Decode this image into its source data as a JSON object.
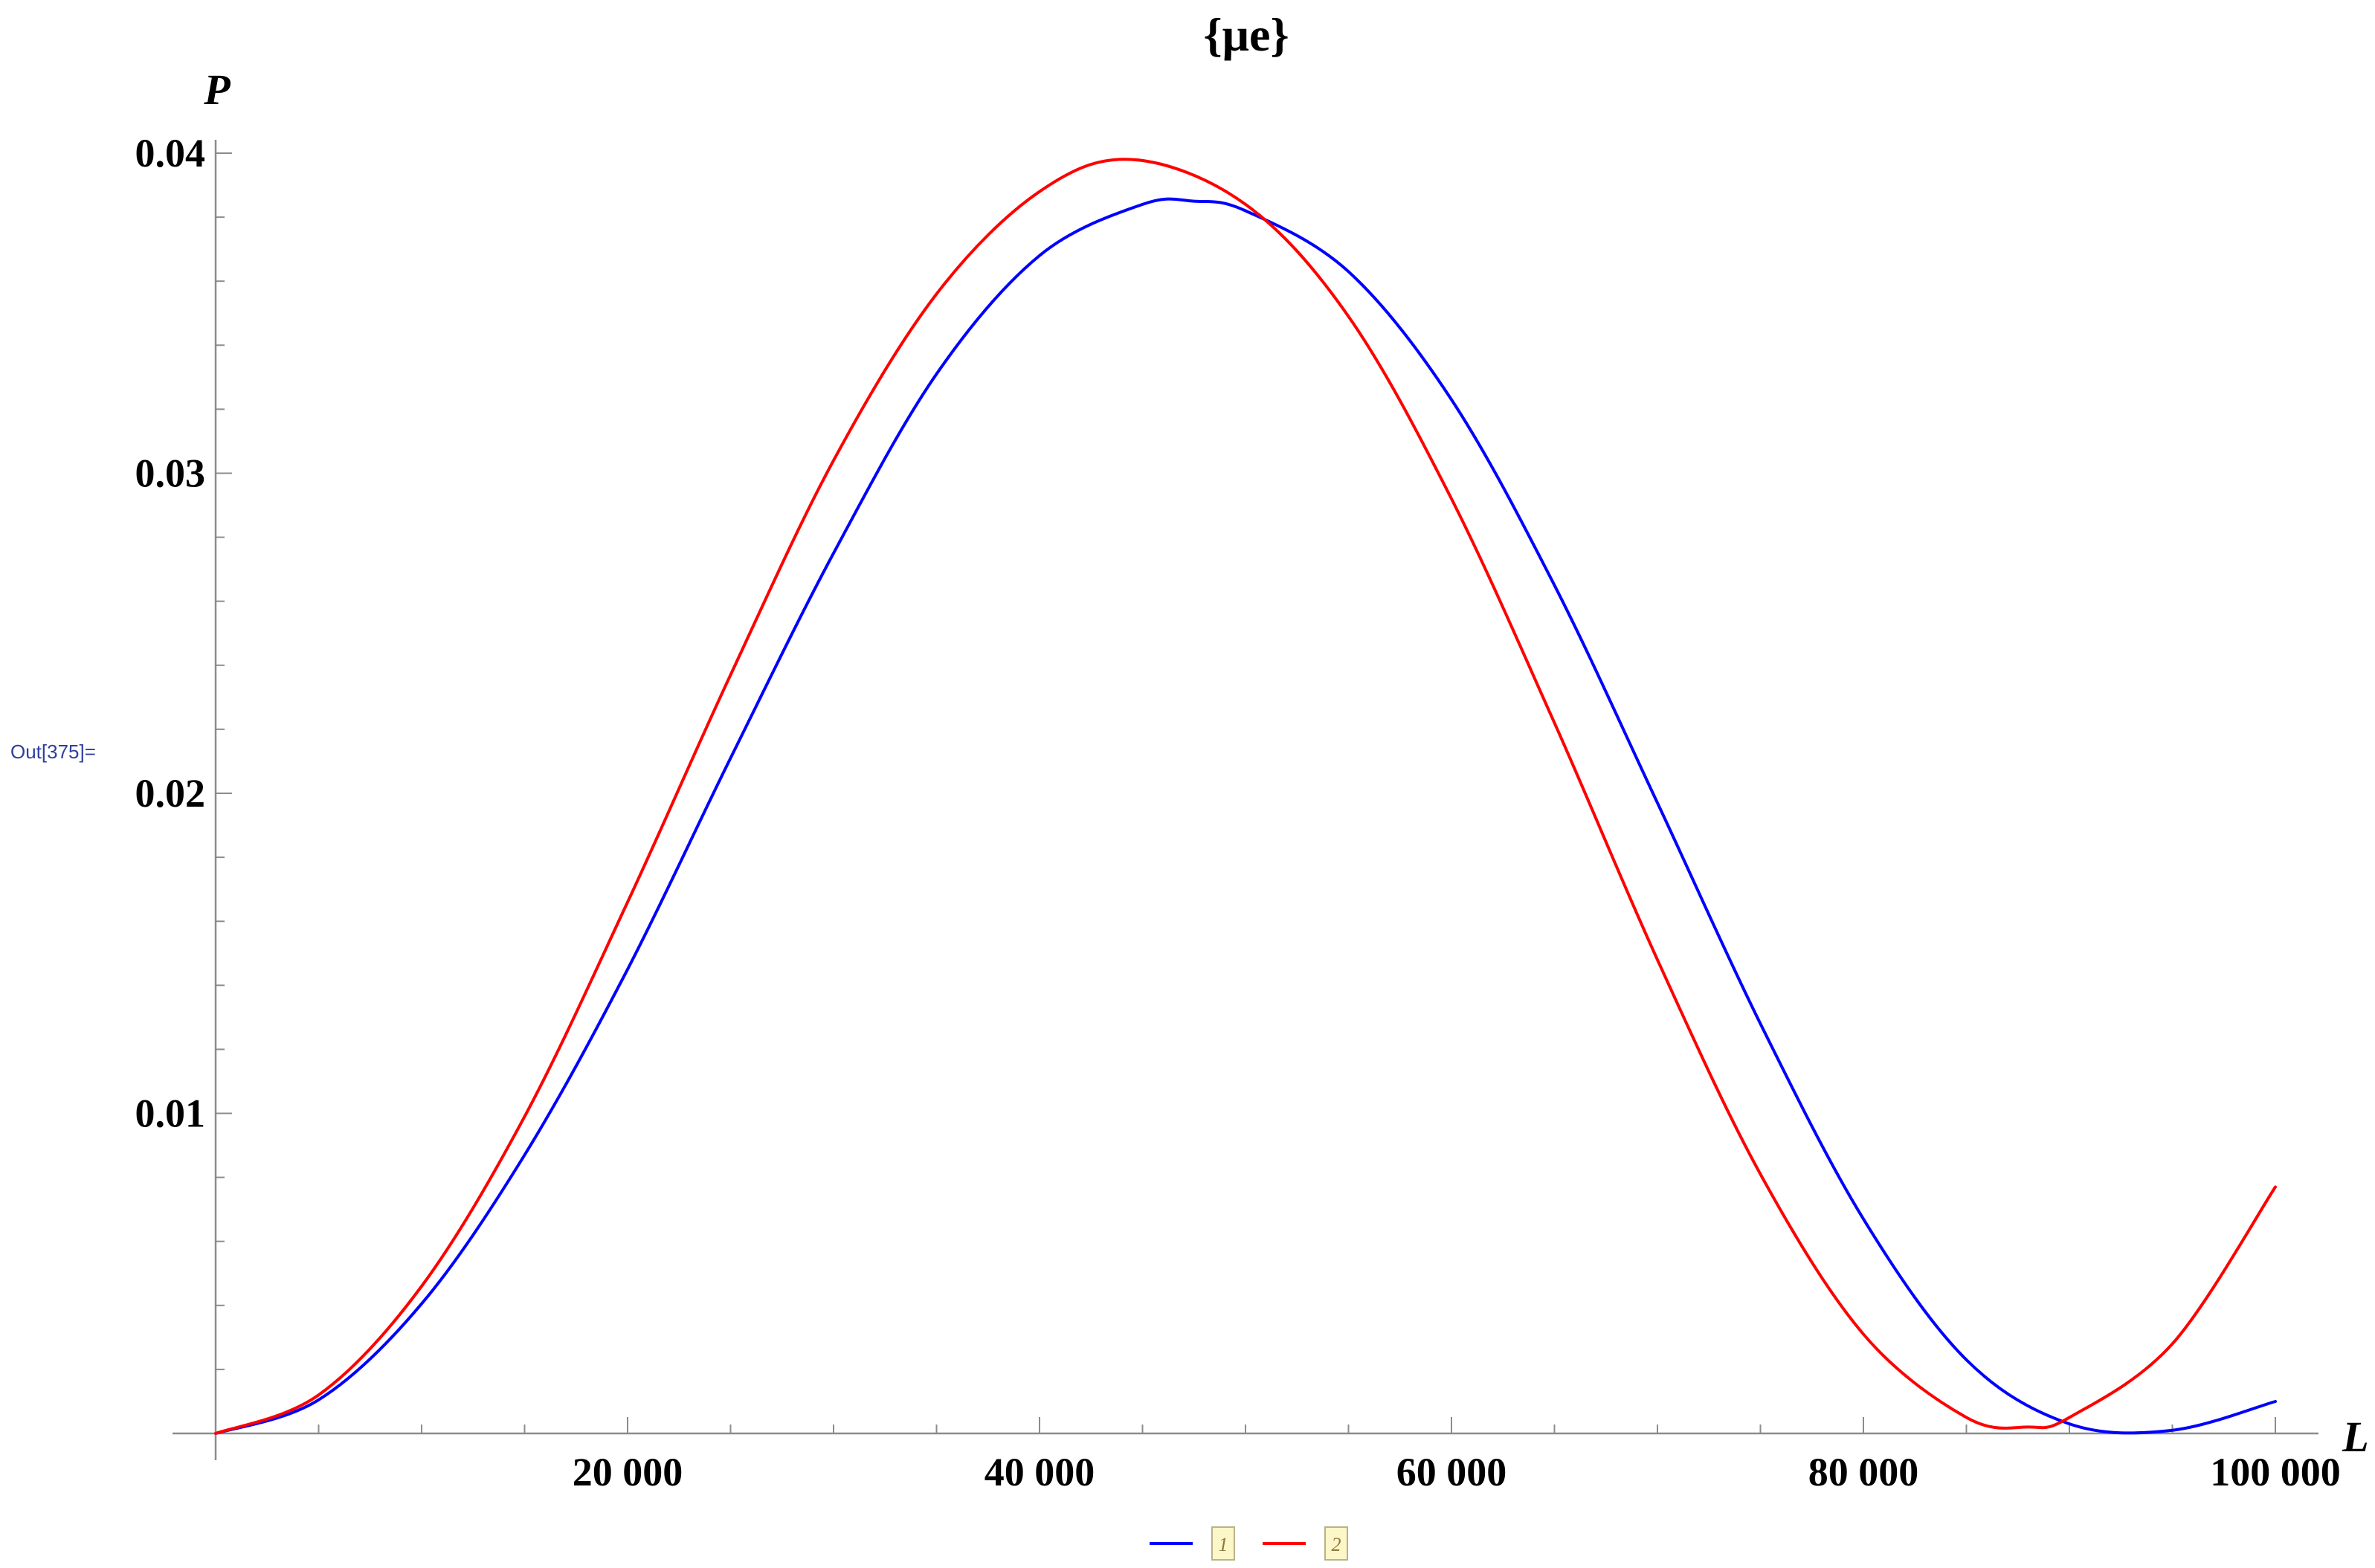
{
  "output_label": "Out[375]=",
  "chart_data": {
    "type": "line",
    "title": "{μe}",
    "xlabel": "L",
    "ylabel": "P",
    "xlim": [
      0,
      100000
    ],
    "ylim": [
      0,
      0.04
    ],
    "x_ticks": [
      20000,
      40000,
      60000,
      80000,
      100000
    ],
    "x_tick_labels": [
      "20 000",
      "40 000",
      "60 000",
      "80 000",
      "100 000"
    ],
    "y_ticks": [
      0.01,
      0.02,
      0.03,
      0.04
    ],
    "y_tick_labels": [
      "0.01",
      "0.02",
      "0.03",
      "0.04"
    ],
    "grid": false,
    "legend_position": "bottom",
    "series": [
      {
        "name": "1",
        "color": "#0000ff",
        "x": [
          0,
          5000,
          10000,
          15000,
          20000,
          25000,
          30000,
          35000,
          40000,
          45000,
          47500,
          50000,
          55000,
          60000,
          65000,
          70000,
          75000,
          80000,
          85000,
          90000,
          95000,
          100000
        ],
        "y": [
          0,
          0.00105,
          0.00405,
          0.0087,
          0.0145,
          0.0211,
          0.0275,
          0.0331,
          0.0368,
          0.0384,
          0.0385,
          0.0382,
          0.0363,
          0.0323,
          0.0265,
          0.0197,
          0.0128,
          0.0067,
          0.0023,
          0.0003,
          0.0001,
          0.001
        ]
      },
      {
        "name": "2",
        "color": "#ff0000",
        "x": [
          0,
          5000,
          10000,
          15000,
          20000,
          25000,
          30000,
          35000,
          40000,
          44500,
          50000,
          55000,
          60000,
          65000,
          70000,
          75000,
          80000,
          85000,
          88000,
          90000,
          95000,
          100000
        ],
        "y": [
          0,
          0.0012,
          0.0046,
          0.0099,
          0.0166,
          0.0237,
          0.0304,
          0.0356,
          0.0388,
          0.0398,
          0.0384,
          0.0349,
          0.0292,
          0.0222,
          0.0148,
          0.0081,
          0.0031,
          0.0005,
          0.0002,
          0.0005,
          0.0028,
          0.0077
        ]
      }
    ]
  }
}
